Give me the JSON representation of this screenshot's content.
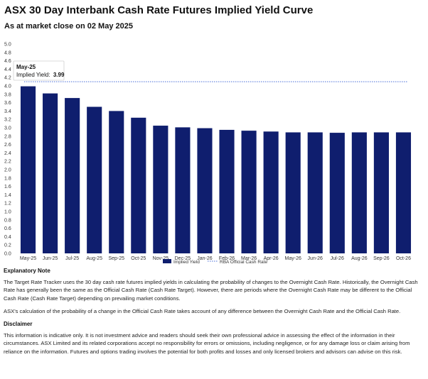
{
  "header": {
    "title": "ASX 30 Day Interbank Cash Rate Futures Implied Yield Curve",
    "subtitle": "As at market close on 02 May 2025"
  },
  "tooltip": {
    "month": "May-25",
    "label": "Implied Yield:",
    "value": "3.99"
  },
  "chart_data": {
    "type": "bar",
    "categories": [
      "May-25",
      "Jun-25",
      "Jul-25",
      "Aug-25",
      "Sep-25",
      "Oct-25",
      "Nov-25",
      "Dec-25",
      "Jan-26",
      "Feb-26",
      "Mar-26",
      "Apr-26",
      "May-26",
      "Jun-26",
      "Jul-26",
      "Aug-26",
      "Sep-26",
      "Oct-26"
    ],
    "series": [
      {
        "name": "Implied Yield",
        "values": [
          3.99,
          3.82,
          3.71,
          3.5,
          3.4,
          3.24,
          3.05,
          3.01,
          2.99,
          2.95,
          2.93,
          2.91,
          2.89,
          2.89,
          2.88,
          2.89,
          2.89,
          2.89
        ],
        "color": "#0f1e6e"
      }
    ],
    "reference_line": {
      "name": "RBA Official Cash Rate",
      "value": 4.1,
      "color": "#4a6fd8",
      "style": "dotted"
    },
    "ylim": [
      0,
      5.0
    ],
    "yticks": [
      "0.0",
      "0.2",
      "0.4",
      "0.6",
      "0.8",
      "1.0",
      "1.2",
      "1.4",
      "1.6",
      "1.8",
      "2.0",
      "2.2",
      "2.4",
      "2.6",
      "2.8",
      "3.0",
      "3.2",
      "3.4",
      "3.6",
      "3.8",
      "4.0",
      "4.2",
      "4.4",
      "4.6",
      "4.8",
      "5.0"
    ],
    "xlabel": "",
    "ylabel": "",
    "grid": false,
    "legend": "bottom"
  },
  "explanatory": {
    "heading": "Explanatory Note",
    "p1": "The Target Rate Tracker uses the 30 day cash rate futures implied yields in calculating the probability of changes to the Overnight Cash Rate. Historically, the Overnight Cash Rate has generally been the same as the Official Cash Rate (Cash Rate Target). However, there are periods where the Overnight Cash Rate may be different to the Official Cash Rate (Cash Rate Target) depending on prevailing market conditions.",
    "p2": "ASX's calculation of the probability of a change in the Official Cash Rate takes account of any difference between the Overnight Cash Rate and the Official Cash Rate."
  },
  "disclaimer": {
    "heading": "Disclaimer",
    "p1": "This information is indicative only. It is not investment advice and readers should seek their own professional advice in assessing the effect of the information in their circumstances. ASX Limited and its related corporations accept no responsibility for errors or omissions, including negligence, or for any damage loss or claim arising from reliance on the information. Futures and options trading involves the potential for both profits and losses and only licensed brokers and advisors can advise on this risk."
  }
}
